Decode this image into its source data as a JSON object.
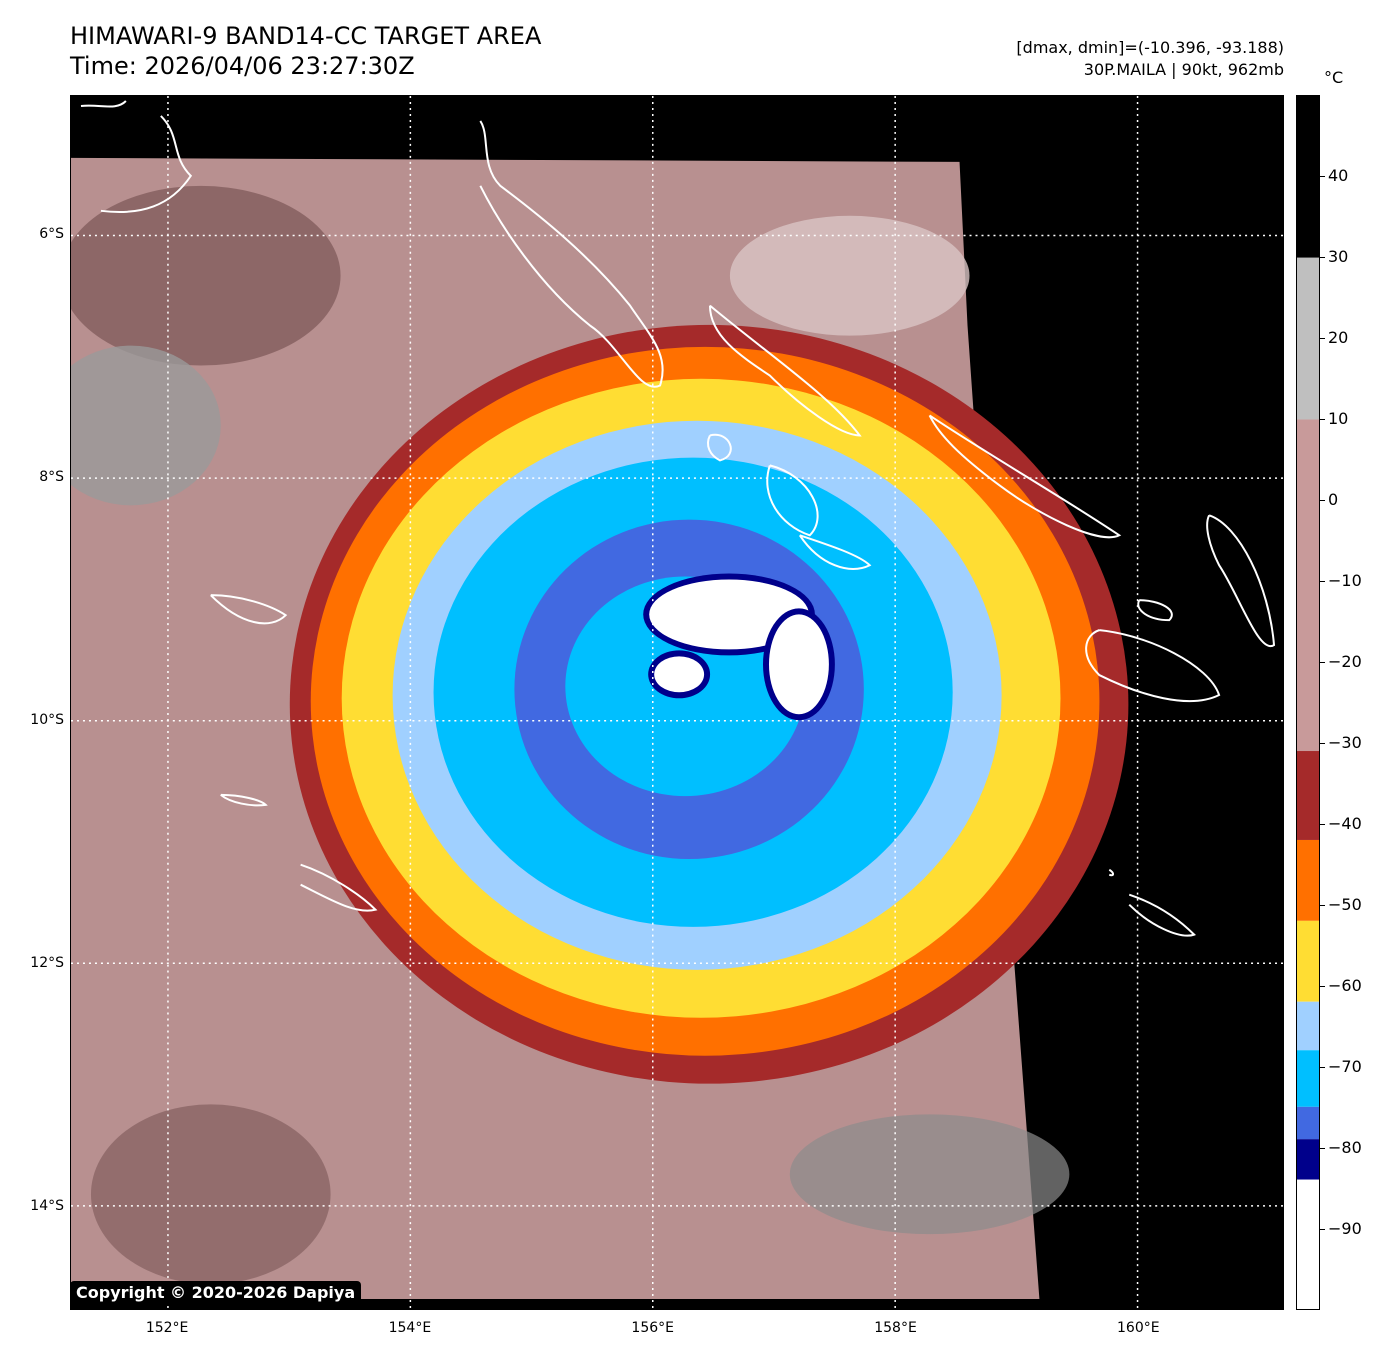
{
  "header": {
    "title_line1": "HIMAWARI-9 BAND14-CC TARGET AREA",
    "title_line2": "Time: 2026/04/06 23:27:30Z",
    "info_line1": "[dmax, dmin]=(-10.396, -93.188)",
    "info_line2": "30P.MAILA | 90kt, 962mb"
  },
  "colorbar": {
    "unit": "°C",
    "range": [
      -100,
      50
    ],
    "ticks": [
      40,
      30,
      20,
      10,
      0,
      -10,
      -20,
      -30,
      -40,
      -50,
      -60,
      -70,
      -80,
      -90
    ],
    "segments": [
      {
        "from": 50,
        "to": 30,
        "color": "#000000"
      },
      {
        "from": 30,
        "to": 10,
        "color": "#bfbfbf"
      },
      {
        "from": 10,
        "to": -31,
        "color": "#c89a9a"
      },
      {
        "from": -31,
        "to": -42,
        "color": "#a52a2a"
      },
      {
        "from": -42,
        "to": -52,
        "color": "#ff7000"
      },
      {
        "from": -52,
        "to": -62,
        "color": "#ffdd33"
      },
      {
        "from": -62,
        "to": -68,
        "color": "#a0d0ff"
      },
      {
        "from": -68,
        "to": -75,
        "color": "#00bfff"
      },
      {
        "from": -75,
        "to": -79,
        "color": "#4169e1"
      },
      {
        "from": -79,
        "to": -84,
        "color": "#00008b"
      },
      {
        "from": -84,
        "to": -100,
        "color": "#ffffff"
      }
    ]
  },
  "map": {
    "lat_labels": [
      "6°S",
      "8°S",
      "10°S",
      "12°S",
      "14°S"
    ],
    "lat_values": [
      -6,
      -8,
      -10,
      -12,
      -14
    ],
    "lon_labels": [
      "152°E",
      "154°E",
      "156°E",
      "158°E",
      "160°E"
    ],
    "lon_values": [
      152,
      154,
      156,
      158,
      160
    ],
    "lon_range": [
      151.2,
      161.2
    ],
    "lat_range": [
      -4.85,
      -14.85
    ],
    "storm_center": {
      "lon": 156.3,
      "lat": -9.7
    }
  },
  "copyright": "Copyright © 2020-2026 Dapiya"
}
